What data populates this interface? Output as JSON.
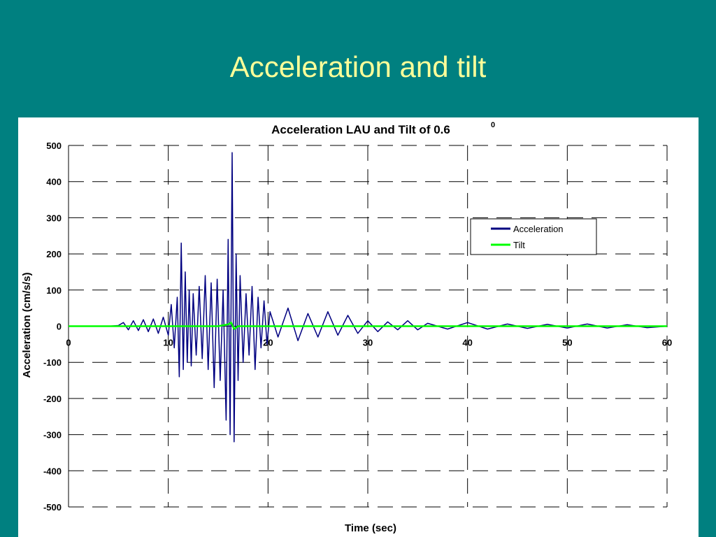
{
  "slide": {
    "title": "Acceleration and tilt"
  },
  "chart_data": {
    "type": "line",
    "title": "Acceleration  LAU  and  Tilt  of  0.6",
    "title_superscript": "0",
    "xlabel": "Time  (sec)",
    "ylabel": "Acceleration (cm/s/s)",
    "xlim": [
      0,
      60
    ],
    "ylim": [
      -500,
      500
    ],
    "x_ticks": [
      0,
      10,
      20,
      30,
      40,
      50,
      60
    ],
    "y_ticks": [
      500,
      400,
      300,
      200,
      100,
      0,
      -100,
      -200,
      -300,
      -400,
      -500
    ],
    "grid": "dashed",
    "legend_position": "top-right",
    "colors": {
      "Acceleration": "#000080",
      "Tilt": "#00ff00",
      "background": "#008080",
      "title": "#ffff99"
    },
    "series": [
      {
        "name": "Acceleration",
        "x": [
          0,
          2,
          4,
          5,
          5.5,
          6,
          6.5,
          7,
          7.5,
          8,
          8.5,
          9,
          9.5,
          10,
          10.3,
          10.6,
          10.9,
          11.1,
          11.3,
          11.5,
          11.7,
          11.9,
          12.1,
          12.3,
          12.5,
          12.8,
          13.1,
          13.4,
          13.7,
          14,
          14.3,
          14.6,
          14.9,
          15.2,
          15.5,
          15.8,
          16.0,
          16.2,
          16.4,
          16.6,
          16.8,
          17.0,
          17.2,
          17.5,
          17.8,
          18.1,
          18.4,
          18.7,
          19.0,
          19.3,
          19.6,
          19.9,
          20.2,
          21,
          22,
          23,
          24,
          25,
          26,
          27,
          28,
          29,
          30,
          31,
          32,
          33,
          34,
          35,
          36,
          38,
          40,
          42,
          44,
          46,
          48,
          50,
          52,
          54,
          56,
          58,
          60
        ],
        "values": [
          0,
          0,
          0,
          2,
          10,
          -10,
          15,
          -12,
          18,
          -15,
          20,
          -20,
          25,
          -25,
          60,
          -60,
          80,
          -140,
          230,
          -120,
          150,
          -100,
          100,
          -110,
          90,
          -80,
          110,
          -90,
          140,
          -120,
          120,
          -170,
          130,
          -150,
          100,
          -260,
          240,
          -300,
          480,
          -320,
          200,
          -150,
          140,
          -100,
          90,
          -80,
          110,
          -120,
          80,
          -60,
          70,
          -50,
          40,
          -30,
          50,
          -40,
          35,
          -30,
          40,
          -25,
          30,
          -20,
          15,
          -15,
          12,
          -10,
          15,
          -10,
          8,
          -8,
          10,
          -8,
          6,
          -6,
          5,
          -5,
          6,
          -5,
          4,
          -4,
          0
        ]
      },
      {
        "name": "Tilt",
        "x": [
          0,
          15,
          16,
          16.3,
          16.6,
          17,
          18,
          60
        ],
        "values": [
          0,
          0,
          5,
          10,
          -8,
          0,
          0,
          0
        ]
      }
    ]
  }
}
